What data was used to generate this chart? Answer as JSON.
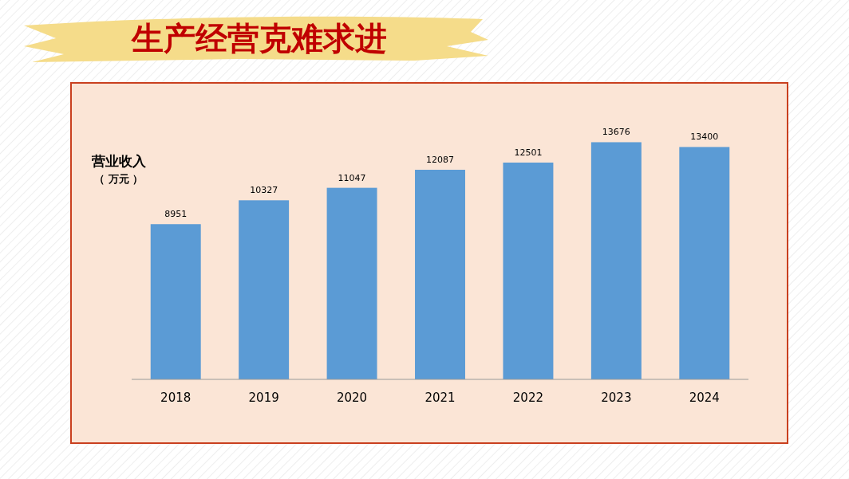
{
  "chart_data": {
    "type": "bar",
    "title": "生产经营克难求进",
    "ylabel": "营业收入",
    "annotations": [
      "（ 万元 ）"
    ],
    "categories": [
      "2018",
      "2019",
      "2020",
      "2021",
      "2022",
      "2023",
      "2024"
    ],
    "values": [
      8951,
      10327,
      11047,
      12087,
      12501,
      13676,
      13400
    ],
    "color": "#5b9bd5",
    "data_labels": true
  }
}
